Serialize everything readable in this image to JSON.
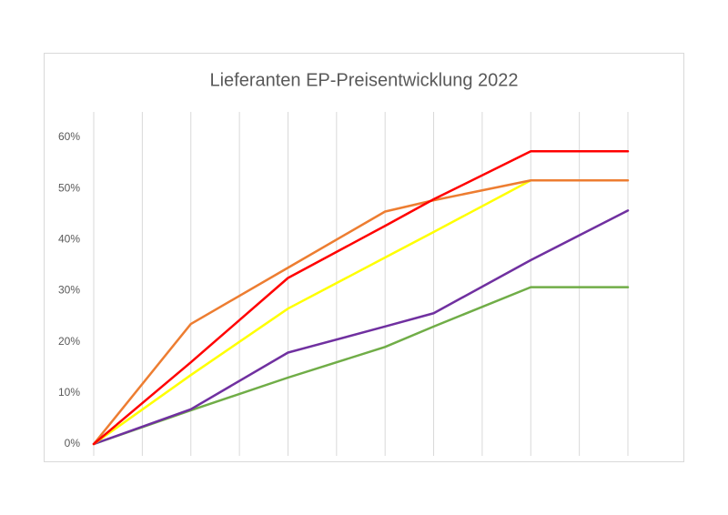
{
  "chart_data": {
    "type": "line",
    "title": "Lieferanten EP-Preisentwicklung 2022",
    "x": [
      0,
      2,
      4,
      6,
      7,
      9,
      11
    ],
    "xlim": [
      0,
      11
    ],
    "xticks": [
      0,
      1,
      2,
      3,
      4,
      5,
      6,
      7,
      8,
      9,
      10,
      11
    ],
    "ylim": [
      0,
      65
    ],
    "yticks": [
      {
        "value": 0,
        "label": "0%"
      },
      {
        "value": 10,
        "label": "10%"
      },
      {
        "value": 20,
        "label": "20%"
      },
      {
        "value": 30,
        "label": "30%"
      },
      {
        "value": 40,
        "label": "40%"
      },
      {
        "value": 50,
        "label": "50%"
      },
      {
        "value": 60,
        "label": "60%"
      }
    ],
    "grid": true,
    "series": [
      {
        "color": "#70ad47",
        "values": [
          0,
          6.6,
          13,
          19,
          23,
          30.7,
          30.7
        ]
      },
      {
        "color": "#7030a0",
        "values": [
          0,
          6.8,
          17.9,
          23,
          25.6,
          36,
          45.7
        ]
      },
      {
        "color": "#ffff00",
        "values": [
          0,
          13.5,
          26.5,
          36.5,
          41.5,
          51.6,
          null
        ]
      },
      {
        "color": "#ed7d31",
        "values": [
          0,
          23.5,
          34.5,
          45.5,
          47.7,
          51.6,
          51.6
        ]
      },
      {
        "color": "#ff0000",
        "values": [
          0,
          16,
          32.5,
          42.7,
          47.9,
          57.3,
          57.3
        ]
      }
    ]
  }
}
